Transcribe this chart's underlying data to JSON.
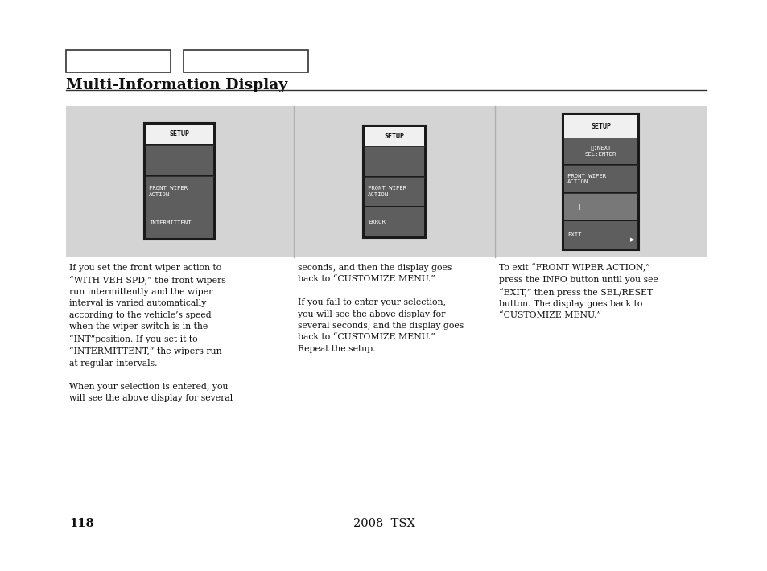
{
  "title": "Multi-Information Display",
  "page_num": "118",
  "model": "2008  TSX",
  "bg_color": "#ffffff",
  "panel_bg": "#d4d4d4",
  "screen_dark": "#606060",
  "screen_border": "#1a1a1a",
  "header_bg": "#f2f2f2",
  "col1_text": "If you set the front wiper action to\n“WITH VEH SPD,” the front wipers\nrun intermittently and the wiper\ninterval is varied automatically\naccording to the vehicle’s speed\nwhen the wiper switch is in the\n“INT”position. If you set it to\n“INTERMITTENT,” the wipers run\nat regular intervals.\n\nWhen your selection is entered, you\nwill see the above display for several",
  "col2_text": "seconds, and then the display goes\nback to “CUSTOMIZE MENU.”\n\nIf you fail to enter your selection,\nyou will see the above display for\nseveral seconds, and the display goes\nback to “CUSTOMIZE MENU.”\nRepeat the setup.",
  "col3_text": "To exit “FRONT WIPER ACTION,”\npress the INFO button until you see\n“EXIT,” then press the SEL/RESET\nbutton. The display goes back to\n“CUSTOMIZE MENU.”"
}
